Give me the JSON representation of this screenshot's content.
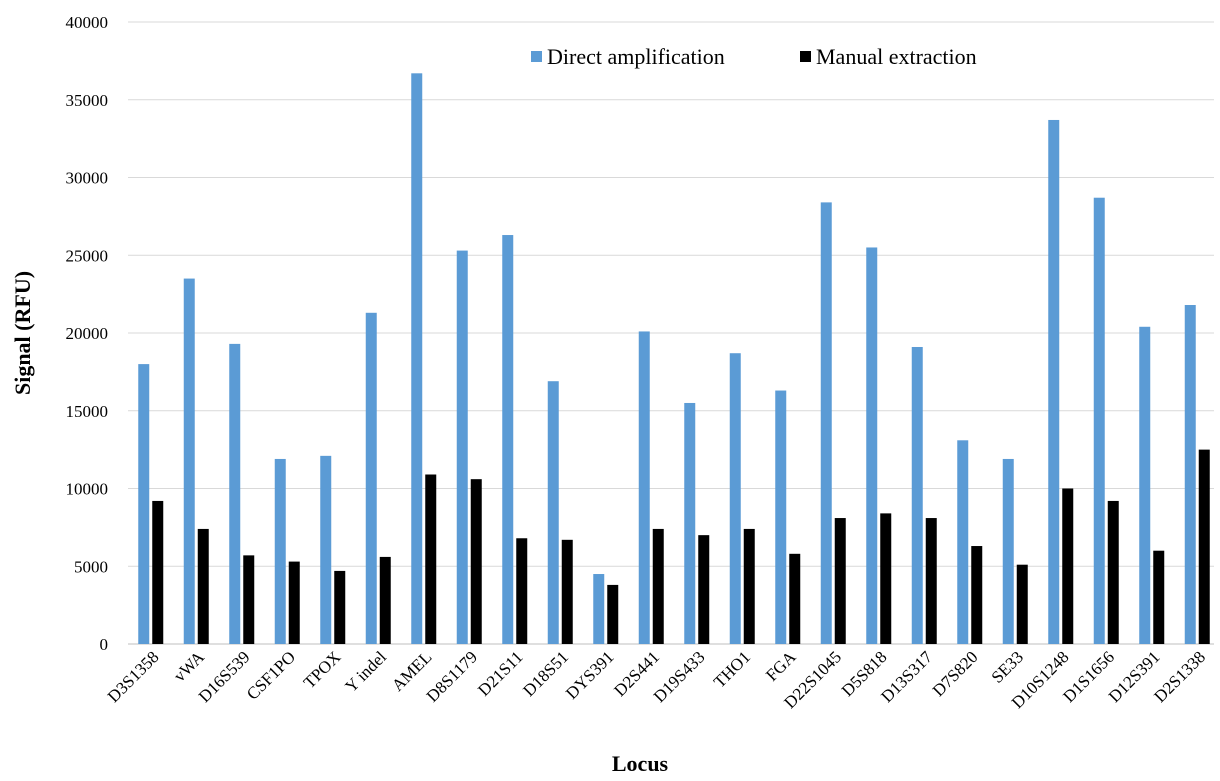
{
  "chart_data": {
    "type": "bar",
    "title": "",
    "xlabel": "Locus",
    "ylabel": "Signal (RFU)",
    "ylim": [
      0,
      40000
    ],
    "yticks": [
      0,
      5000,
      10000,
      15000,
      20000,
      25000,
      30000,
      35000,
      40000
    ],
    "grid": true,
    "legend_position": "top-right",
    "categories": [
      "D3S1358",
      "vWA",
      "D16S539",
      "CSF1PO",
      "TPOX",
      "Y indel",
      "AMEL",
      "D8S1179",
      "D21S11",
      "D18S51",
      "DYS391",
      "D2S441",
      "D19S433",
      "THO1",
      "FGA",
      "D22S1045",
      "D5S818",
      "D13S317",
      "D7S820",
      "SE33",
      "D10S1248",
      "D1S1656",
      "D12S391",
      "D2S1338"
    ],
    "series": [
      {
        "name": "Direct amplification",
        "color": "#5b9bd5",
        "values": [
          18000,
          23500,
          19300,
          11900,
          12100,
          21300,
          36700,
          25300,
          26300,
          16900,
          4500,
          20100,
          15500,
          18700,
          16300,
          28400,
          25500,
          19100,
          13100,
          11900,
          33700,
          28700,
          20400,
          21800
        ]
      },
      {
        "name": "Manual extraction",
        "color": "#000000",
        "values": [
          9200,
          7400,
          5700,
          5300,
          4700,
          5600,
          10900,
          10600,
          6800,
          6700,
          3800,
          7400,
          7000,
          7400,
          5800,
          8100,
          8400,
          8100,
          6300,
          5100,
          10000,
          9200,
          6000,
          12500
        ]
      }
    ]
  }
}
